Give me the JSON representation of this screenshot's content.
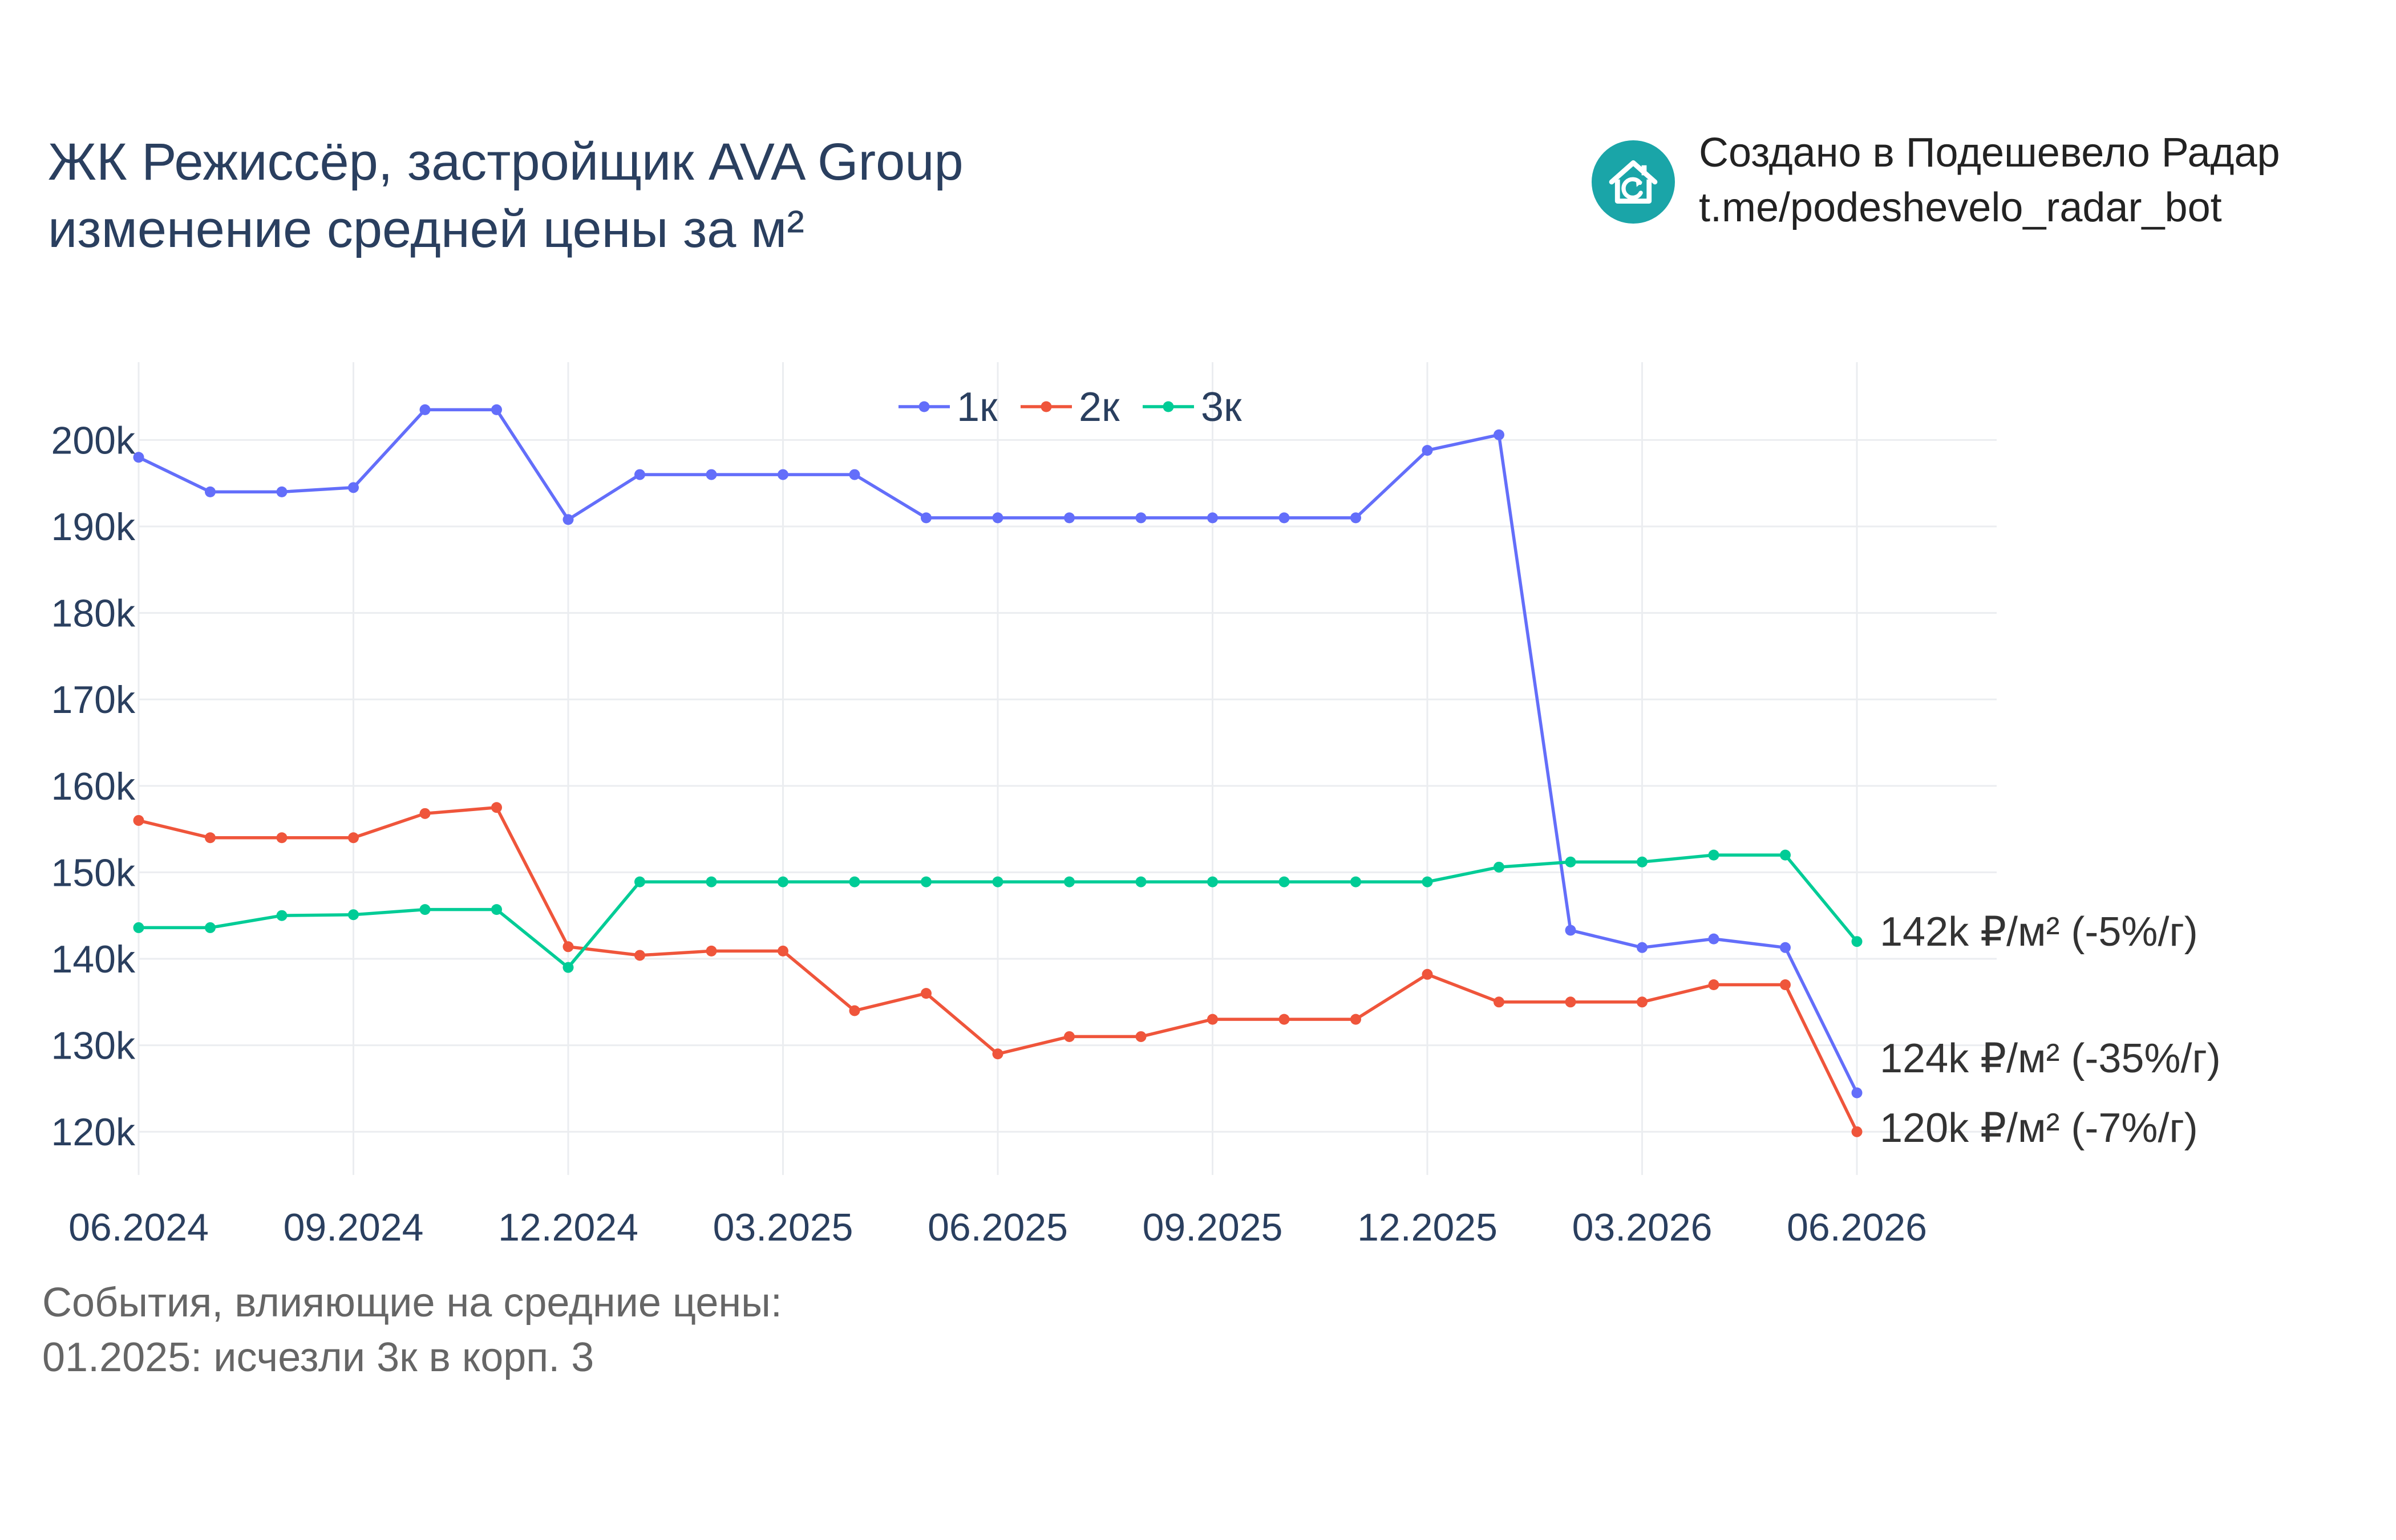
{
  "header": {
    "title_line1": "ЖК Режиссёр, застройщик AVA Group",
    "title_line2": "изменение средней цены за м²"
  },
  "brand": {
    "line1": "Создано в Подешевело Радар",
    "line2": "t.me/podeshevelo_radar_bot",
    "logo_icon": "house-refresh-icon",
    "logo_color": "#1aa5a8"
  },
  "events": {
    "heading": "События, влияющие на средние цены:",
    "items": [
      "01.2025: исчезли 3к в корп. 3"
    ]
  },
  "chart_data": {
    "type": "line",
    "x_unit": "month",
    "x": [
      "06.2024",
      "07.2024",
      "08.2024",
      "09.2024",
      "10.2024",
      "11.2024",
      "12.2024",
      "01.2025",
      "02.2025",
      "03.2025",
      "04.2025",
      "05.2025",
      "06.2025",
      "07.2025",
      "08.2025",
      "09.2025",
      "10.2025",
      "11.2025",
      "12.2025",
      "01.2026",
      "02.2026",
      "03.2026",
      "04.2026",
      "05.2026",
      "06.2026"
    ],
    "x_ticks": [
      "06.2024",
      "09.2024",
      "12.2024",
      "03.2025",
      "06.2025",
      "09.2025",
      "12.2025",
      "03.2026",
      "06.2026"
    ],
    "y_ticks": [
      120000,
      130000,
      140000,
      150000,
      160000,
      170000,
      180000,
      190000,
      200000
    ],
    "y_tick_labels": [
      "120k",
      "130k",
      "140k",
      "150k",
      "160k",
      "170k",
      "180k",
      "190k",
      "200k"
    ],
    "ylim": [
      115000,
      209000
    ],
    "grid": true,
    "legend_position": "top-center",
    "series": [
      {
        "name": "1к",
        "color": "#636efa",
        "values": [
          198000,
          194000,
          194000,
          194500,
          203500,
          203500,
          190800,
          196000,
          196000,
          196000,
          196000,
          191000,
          191000,
          191000,
          191000,
          191000,
          191000,
          191000,
          198800,
          200600,
          143300,
          141300,
          142300,
          141300,
          124500
        ],
        "end_label": "124k ₽/м² (-35%/г)"
      },
      {
        "name": "2к",
        "color": "#ef553b",
        "values": [
          156000,
          154000,
          154000,
          154000,
          156800,
          157500,
          141400,
          140400,
          140900,
          140900,
          134000,
          136000,
          129000,
          131000,
          131000,
          133000,
          133000,
          133000,
          138200,
          135000,
          135000,
          135000,
          137000,
          137000,
          120000
        ],
        "end_label": "120k ₽/м² (-7%/г)"
      },
      {
        "name": "3к",
        "color": "#00cc96",
        "values": [
          143600,
          143600,
          145000,
          145100,
          145700,
          145700,
          139000,
          148900,
          148900,
          148900,
          148900,
          148900,
          148900,
          148900,
          148900,
          148900,
          148900,
          148900,
          148900,
          150600,
          151200,
          151200,
          152000,
          152000,
          142000
        ],
        "end_label": "142k ₽/м² (-5%/г)"
      }
    ]
  }
}
